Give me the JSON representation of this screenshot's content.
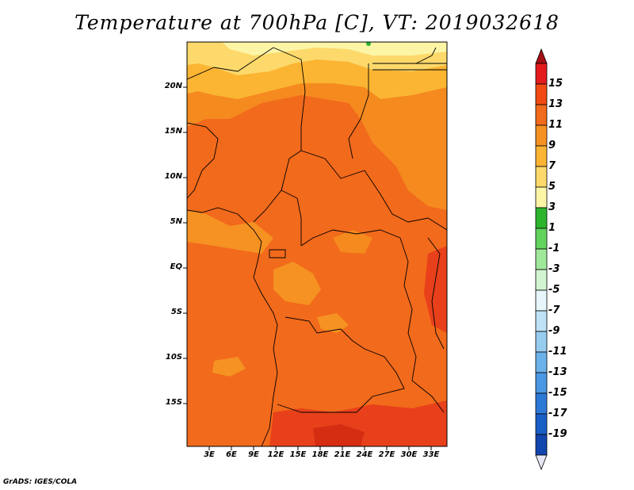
{
  "title": "Temperature at 700hPa [C], VT: 2019032618",
  "map": {
    "y_ticks": [
      "20N",
      "15N",
      "10N",
      "5N",
      "EQ",
      "5S",
      "10S",
      "15S"
    ],
    "x_ticks": [
      "3E",
      "6E",
      "9E",
      "12E",
      "15E",
      "18E",
      "21E",
      "24E",
      "27E",
      "30E",
      "33E"
    ]
  },
  "colorbar": {
    "labels": [
      "15",
      "13",
      "11",
      "9",
      "7",
      "5",
      "3",
      "1",
      "-1",
      "-3",
      "-5",
      "-7",
      "-9",
      "-11",
      "-13",
      "-15",
      "-17",
      "-19"
    ],
    "colors": [
      "#a50f15",
      "#e41a1c",
      "#f24a12",
      "#f26a1b",
      "#f59222",
      "#fbb533",
      "#fdd96b",
      "#fdf5a6",
      "#2db52d",
      "#62d45e",
      "#9fe89a",
      "#d2f5cf",
      "#e6f6fb",
      "#bfe2f7",
      "#97ccf1",
      "#6cb2ea",
      "#4a98e3",
      "#2d79d8",
      "#1a5fc6",
      "#1245ad",
      "#0b2b8c"
    ]
  },
  "credit": "GrADS: IGES/COLA"
}
